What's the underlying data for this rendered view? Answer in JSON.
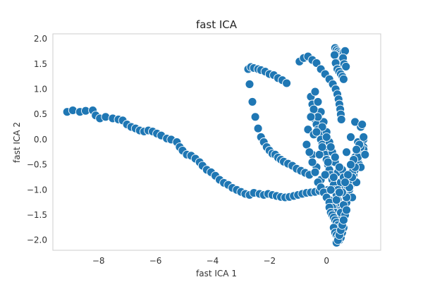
{
  "chart_data": {
    "type": "scatter",
    "title": "fast ICA",
    "xlabel": "fast ICA 1",
    "ylabel": "fast ICA 2",
    "xlim": [
      -9.6,
      1.9
    ],
    "ylim": [
      -2.2,
      2.1
    ],
    "xticks": [
      -8,
      -6,
      -4,
      -2,
      0
    ],
    "xtick_labels": [
      "−8",
      "−6",
      "−4",
      "−2",
      "0"
    ],
    "yticks": [
      2.0,
      1.5,
      1.0,
      0.5,
      0.0,
      -0.5,
      -1.0,
      -1.5,
      -2.0
    ],
    "ytick_labels": [
      "2.0",
      "1.5",
      "1.0",
      "0.5",
      "0.0",
      "−0.5",
      "−1.0",
      "−1.5",
      "−2.0"
    ],
    "grid": false,
    "marker_color": "#1f77b4",
    "marker_edge_color": "#ffffff",
    "series": [
      {
        "x": [
          -9.1,
          -8.9,
          -8.65,
          -8.45,
          -8.2,
          -8.1,
          -7.95,
          -7.75,
          -7.5,
          -7.3,
          -7.15,
          -7.0,
          -6.85,
          -6.7,
          -6.55,
          -6.4,
          -6.25,
          -6.1,
          -5.95,
          -5.8,
          -5.6,
          -5.45,
          -5.25,
          -5.15,
          -5.05,
          -4.9,
          -4.75,
          -4.6,
          -4.45,
          -4.35,
          -4.2,
          -4.05,
          -3.9,
          -3.75,
          -3.6,
          -3.45,
          -3.3,
          -3.15,
          -3.0,
          -2.85,
          -2.7,
          -2.55,
          -2.35,
          -2.2,
          -2.05,
          -1.9,
          -1.75,
          -1.6,
          -1.45,
          -1.3,
          -1.15,
          -1.0,
          -0.85,
          -0.7,
          -0.55,
          -0.4,
          -0.25,
          -0.1,
          0.05,
          0.2,
          0.35,
          0.5,
          0.65,
          0.8
        ],
        "y": [
          0.55,
          0.58,
          0.55,
          0.57,
          0.58,
          0.48,
          0.42,
          0.45,
          0.42,
          0.4,
          0.38,
          0.3,
          0.25,
          0.22,
          0.18,
          0.16,
          0.18,
          0.16,
          0.12,
          0.08,
          0.02,
          0.0,
          -0.05,
          -0.15,
          -0.22,
          -0.3,
          -0.32,
          -0.38,
          -0.45,
          -0.52,
          -0.6,
          -0.65,
          -0.72,
          -0.8,
          -0.86,
          -0.9,
          -0.96,
          -1.0,
          -1.04,
          -1.08,
          -1.1,
          -1.06,
          -1.08,
          -1.1,
          -1.08,
          -1.1,
          -1.12,
          -1.14,
          -1.15,
          -1.14,
          -1.12,
          -1.1,
          -1.08,
          -1.06,
          -1.05,
          -1.04,
          -1.02,
          -1.0,
          -1.0,
          -1.0,
          -0.98,
          -0.96,
          -0.95,
          -0.95
        ]
      },
      {
        "x": [
          -2.75,
          -2.65,
          -2.55,
          -2.4,
          -2.3,
          -2.15,
          -2.0,
          -1.85,
          -1.7,
          -1.55,
          -1.4,
          -2.7,
          -2.6,
          -2.5,
          -2.4,
          -2.3,
          -2.2,
          -2.1,
          -2.0,
          -1.9,
          -1.8,
          -1.7,
          -1.6,
          -1.5,
          -1.35,
          -1.2,
          -1.05,
          -0.9,
          -0.75,
          -0.6
        ],
        "y": [
          1.4,
          1.44,
          1.42,
          1.4,
          1.38,
          1.35,
          1.3,
          1.28,
          1.22,
          1.18,
          1.12,
          1.1,
          0.75,
          0.45,
          0.22,
          0.05,
          -0.05,
          -0.15,
          -0.22,
          -0.28,
          -0.3,
          -0.36,
          -0.4,
          -0.44,
          -0.48,
          -0.52,
          -0.58,
          -0.62,
          -0.66,
          -0.7
        ]
      },
      {
        "x": [
          -0.95,
          -0.8,
          -0.65,
          -0.5,
          -0.35,
          -0.2,
          -0.05,
          0.1,
          0.22,
          0.32,
          0.38,
          0.42,
          0.45,
          0.48,
          0.5,
          0.52,
          0.3,
          0.35,
          0.4,
          0.45,
          0.5,
          0.55,
          0.6,
          0.65,
          0.35,
          0.42,
          0.5,
          0.58,
          0.62,
          0.68,
          0.28,
          0.32,
          0.38,
          0.44,
          0.5,
          0.56,
          0.6
        ],
        "y": [
          1.55,
          1.62,
          1.65,
          1.58,
          1.52,
          1.4,
          1.3,
          1.2,
          1.1,
          1.0,
          0.9,
          0.8,
          0.7,
          0.6,
          0.5,
          0.4,
          1.82,
          1.78,
          1.75,
          1.72,
          1.7,
          1.68,
          1.74,
          1.76,
          1.62,
          1.58,
          1.55,
          1.62,
          1.5,
          1.45,
          1.68,
          1.52,
          1.4,
          1.35,
          1.3,
          1.25,
          1.2
        ]
      },
      {
        "x": [
          -0.55,
          -0.5,
          -0.45,
          -0.4,
          -0.35,
          -0.3,
          -0.25,
          -0.2,
          -0.15,
          -0.1,
          -0.05,
          0.0,
          0.05,
          0.1,
          0.15,
          0.2,
          0.25,
          0.3,
          0.35,
          0.4,
          0.45,
          0.5,
          0.55,
          0.6,
          0.65,
          0.7,
          0.75,
          0.8,
          0.85,
          0.9,
          0.95,
          1.0,
          1.05,
          1.1,
          1.15,
          1.2,
          1.25,
          1.3,
          -0.4,
          -0.3,
          -0.2,
          -0.1,
          0.0,
          0.1,
          0.2,
          0.3,
          0.4,
          0.5,
          0.6,
          0.7,
          0.8,
          0.9,
          1.0,
          1.1,
          1.2,
          1.3,
          -0.5,
          -0.35,
          -0.2,
          -0.05,
          0.1,
          0.25,
          0.4,
          0.55,
          0.7,
          0.85,
          1.0,
          1.15,
          1.3,
          -0.45,
          -0.3,
          -0.15,
          0.0,
          0.15,
          0.3,
          0.45,
          0.6,
          0.75,
          0.9,
          1.05,
          1.2
        ],
        "y": [
          0.85,
          0.7,
          0.55,
          0.4,
          0.3,
          0.2,
          0.1,
          0.0,
          -0.1,
          -0.2,
          -0.3,
          -0.4,
          -0.5,
          -0.6,
          -0.7,
          -0.8,
          -0.9,
          -1.0,
          -1.1,
          -1.2,
          -1.3,
          -1.4,
          -1.5,
          -1.4,
          -1.3,
          -1.2,
          -1.1,
          -1.0,
          -0.9,
          -0.8,
          -0.7,
          -0.6,
          -0.5,
          -0.4,
          -0.3,
          -0.2,
          -0.1,
          0.0,
          0.95,
          0.75,
          0.55,
          0.35,
          0.15,
          -0.05,
          -0.25,
          -0.45,
          -0.65,
          -0.85,
          -1.05,
          -1.25,
          -0.95,
          -0.65,
          -0.35,
          -0.05,
          0.25,
          -0.15,
          -0.3,
          -0.55,
          -0.8,
          -1.05,
          -1.2,
          -1.35,
          -1.0,
          -0.6,
          -0.25,
          0.05,
          0.35,
          -0.5,
          -0.2,
          0.6,
          0.45,
          0.25,
          0.05,
          -0.15,
          -0.35,
          -0.55,
          -0.75,
          -0.95,
          -1.15,
          -0.85,
          -0.55
        ]
      },
      {
        "x": [
          -0.7,
          -0.6,
          -0.5,
          -0.4,
          -0.3,
          -0.2,
          -0.1,
          0.0,
          0.1,
          0.2,
          0.3,
          0.4,
          0.5,
          0.6,
          0.7,
          0.8,
          0.9,
          1.0,
          1.1,
          1.2,
          1.3,
          -0.65,
          -0.45,
          -0.25,
          -0.05,
          0.15,
          0.35,
          0.55,
          0.75,
          0.95,
          1.15,
          1.35,
          -0.55,
          -0.35,
          -0.15,
          0.05,
          0.25,
          0.45,
          0.65,
          0.85,
          1.05,
          1.25
        ],
        "y": [
          -0.1,
          -0.25,
          -0.45,
          -0.65,
          -0.85,
          -0.95,
          -1.05,
          -1.15,
          -1.25,
          -1.35,
          -1.45,
          -1.55,
          -1.45,
          -1.3,
          -1.15,
          -0.95,
          -0.75,
          -0.55,
          -0.35,
          -0.15,
          0.05,
          0.2,
          0.1,
          -0.3,
          -0.7,
          -1.0,
          -1.2,
          -1.05,
          -0.7,
          -0.4,
          -0.1,
          -0.3,
          0.45,
          0.15,
          -0.15,
          -0.45,
          -0.75,
          -1.05,
          -0.85,
          -0.5,
          -0.2,
          0.3
        ]
      },
      {
        "x": [
          0.1,
          0.15,
          0.2,
          0.25,
          0.3,
          0.35,
          0.4,
          0.45,
          0.5,
          0.55,
          0.6,
          0.65,
          0.7,
          0.25,
          0.3,
          0.35,
          0.4,
          0.45,
          0.5,
          0.55,
          0.6,
          0.35,
          0.4,
          0.45,
          0.5,
          0.55,
          0.6
        ],
        "y": [
          -1.35,
          -1.45,
          -1.5,
          -1.55,
          -1.6,
          -1.65,
          -1.7,
          -1.75,
          -1.8,
          -1.7,
          -1.6,
          -1.5,
          -1.4,
          -1.75,
          -1.85,
          -1.9,
          -1.95,
          -2.0,
          -1.95,
          -1.85,
          -1.75,
          -2.05,
          -2.0,
          -1.9,
          -1.8,
          -1.7,
          -1.6
        ]
      }
    ]
  }
}
